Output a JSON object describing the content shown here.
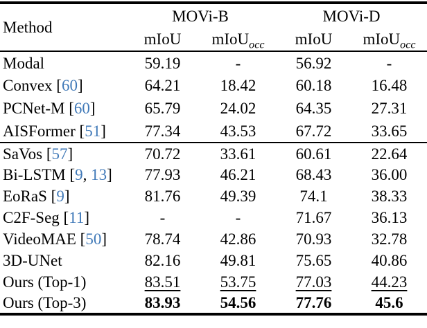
{
  "citation_color": "#4079b8",
  "text_color": "#000000",
  "background_color": "#ffffff",
  "table": {
    "header": {
      "method": "Method",
      "groups": [
        {
          "label": "MOVi-B"
        },
        {
          "label": "MOVi-D"
        }
      ],
      "subcolumns": [
        {
          "base": "mIoU",
          "sub": ""
        },
        {
          "base": "mIoU",
          "sub": "occ"
        },
        {
          "base": "mIoU",
          "sub": ""
        },
        {
          "base": "mIoU",
          "sub": "occ"
        }
      ]
    },
    "sections": [
      {
        "rows": [
          {
            "method": [
              {
                "t": "Modal"
              }
            ],
            "values": [
              "59.19",
              "-",
              "56.92",
              "-"
            ],
            "style": "normal"
          },
          {
            "method": [
              {
                "t": "Convex ["
              },
              {
                "t": "60",
                "cite": true
              },
              {
                "t": "]"
              }
            ],
            "values": [
              "64.21",
              "18.42",
              "60.18",
              "16.48"
            ],
            "style": "normal"
          },
          {
            "method": [
              {
                "t": "PCNet-M ["
              },
              {
                "t": "60",
                "cite": true
              },
              {
                "t": "]"
              }
            ],
            "values": [
              "65.79",
              "24.02",
              "64.35",
              "27.31"
            ],
            "style": "normal"
          },
          {
            "method": [
              {
                "t": "AISFormer ["
              },
              {
                "t": "51",
                "cite": true
              },
              {
                "t": "]"
              }
            ],
            "values": [
              "77.34",
              "43.53",
              "67.72",
              "33.65"
            ],
            "style": "normal"
          }
        ]
      },
      {
        "rows": [
          {
            "method": [
              {
                "t": "SaVos ["
              },
              {
                "t": "57",
                "cite": true
              },
              {
                "t": "]"
              }
            ],
            "values": [
              "70.72",
              "33.61",
              "60.61",
              "22.64"
            ],
            "style": "normal"
          },
          {
            "method": [
              {
                "t": "Bi-LSTM ["
              },
              {
                "t": "9",
                "cite": true
              },
              {
                "t": ", "
              },
              {
                "t": "13",
                "cite": true
              },
              {
                "t": "]"
              }
            ],
            "values": [
              "77.93",
              "46.21",
              "68.43",
              "36.00"
            ],
            "style": "normal"
          },
          {
            "method": [
              {
                "t": "EoRaS ["
              },
              {
                "t": "9",
                "cite": true
              },
              {
                "t": "]"
              }
            ],
            "values": [
              "81.76",
              "49.39",
              "74.1",
              "38.33"
            ],
            "style": "normal"
          },
          {
            "method": [
              {
                "t": "C2F-Seg ["
              },
              {
                "t": "11",
                "cite": true
              },
              {
                "t": "]"
              }
            ],
            "values": [
              "-",
              "-",
              "71.67",
              "36.13"
            ],
            "style": "normal"
          },
          {
            "method": [
              {
                "t": "VideoMAE ["
              },
              {
                "t": "50",
                "cite": true
              },
              {
                "t": "]"
              }
            ],
            "values": [
              "78.74",
              "42.86",
              "70.93",
              "32.78"
            ],
            "style": "normal"
          },
          {
            "method": [
              {
                "t": "3D-UNet"
              }
            ],
            "values": [
              "82.16",
              "49.81",
              "75.65",
              "40.86"
            ],
            "style": "normal"
          },
          {
            "method": [
              {
                "t": "Ours (Top-1)"
              }
            ],
            "values": [
              "83.51",
              "53.75",
              "77.03",
              "44.23"
            ],
            "style": "underline"
          },
          {
            "method": [
              {
                "t": "Ours (Top-3)"
              }
            ],
            "values": [
              "83.93",
              "54.56",
              "77.76",
              "45.6"
            ],
            "style": "bold"
          }
        ]
      }
    ]
  }
}
